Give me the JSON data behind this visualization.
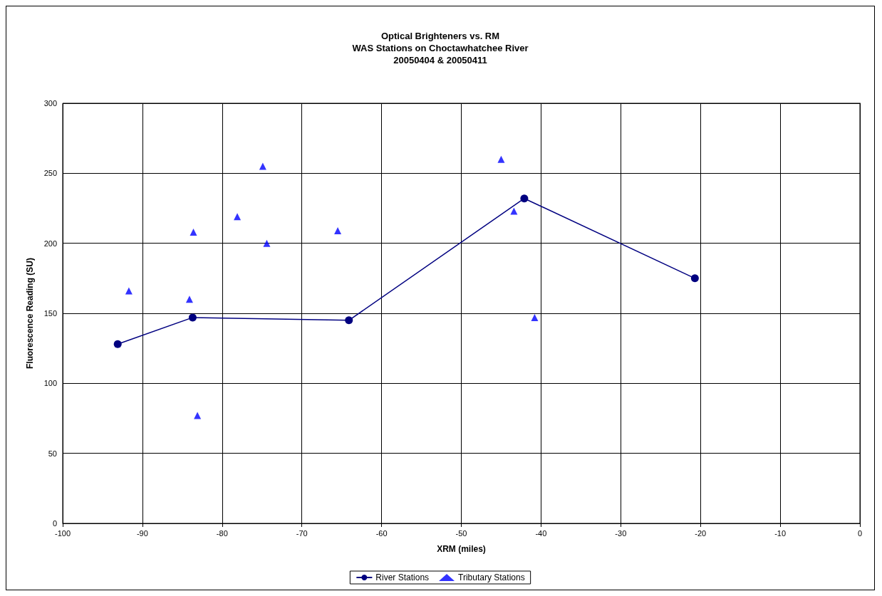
{
  "chart_data": {
    "type": "scatter",
    "title": "Optical Brighteners vs. RM\nWAS Stations on Choctawhatchee River\n20050404 & 20050411",
    "xlabel": "XRM (miles)",
    "ylabel": "Fluorescence Reading (SU)",
    "xlim": [
      -100,
      0
    ],
    "xticks": [
      -100,
      -90,
      -80,
      -70,
      -60,
      -50,
      -40,
      -30,
      -20,
      -10,
      0
    ],
    "ylim": [
      0,
      300
    ],
    "yticks": [
      0,
      50,
      100,
      150,
      200,
      250,
      300
    ],
    "grid": true,
    "legend": "bottom",
    "series": [
      {
        "name": "River Stations",
        "type": "line",
        "marker": "circle",
        "line_style": "solid",
        "color": "#000080",
        "x": [
          -93.1,
          -83.7,
          -64.1,
          -42.1,
          -20.7
        ],
        "values": [
          128,
          147,
          145,
          232,
          175
        ]
      },
      {
        "name": "Tributary Stations",
        "marker": "triangle",
        "color": "#0000ff",
        "x": [
          -91.7,
          -84.1,
          -83.6,
          -83.1,
          -78.1,
          -74.9,
          -74.4,
          -65.5,
          -45.0,
          -43.4,
          -40.8
        ],
        "values": [
          166,
          160,
          208,
          77,
          219,
          255,
          200,
          209,
          260,
          223,
          147
        ]
      }
    ]
  }
}
